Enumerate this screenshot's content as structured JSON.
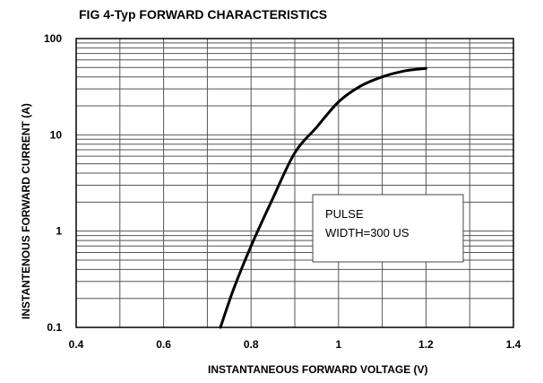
{
  "chart_data": {
    "type": "line",
    "title": "FIG 4-Typ FORWARD CHARACTERISTICS",
    "xlabel": "INSTANTANEOUS FORWARD VOLTAGE (V)",
    "ylabel": "INSTANTENOUS FORWARD CURRENT (A)",
    "xlim": [
      0.4,
      1.4
    ],
    "ylim": [
      0.1,
      100
    ],
    "yscale": "log",
    "grid": true,
    "xticks": [
      "0.4",
      "0.6",
      "0.8",
      "1",
      "1.2",
      "1.4"
    ],
    "yticks": [
      "0.1",
      "1",
      "10",
      "100"
    ],
    "series": [
      {
        "x": [
          0.73,
          0.76,
          0.8,
          0.85,
          0.9,
          0.95,
          1.0,
          1.05,
          1.1,
          1.15,
          1.2
        ],
        "y": [
          0.1,
          0.25,
          0.7,
          2.2,
          6.5,
          12,
          22,
          32,
          40,
          46,
          49
        ]
      }
    ],
    "annotations": [
      "PULSE",
      "WIDTH=300 US"
    ]
  },
  "colors": {
    "curve": "#000000",
    "grid": "#555555",
    "frame": "#000000"
  }
}
